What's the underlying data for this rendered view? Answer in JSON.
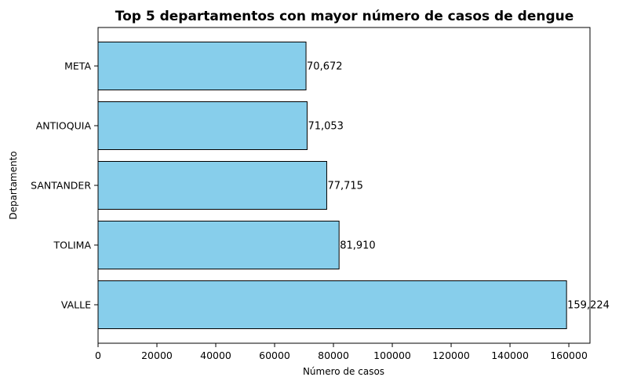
{
  "chart_data": {
    "type": "bar",
    "orientation": "horizontal",
    "title": "Top 5 departamentos con mayor número de casos de dengue",
    "xlabel": "Número de casos",
    "ylabel": "Departamento",
    "categories": [
      "VALLE",
      "TOLIMA",
      "SANTANDER",
      "ANTIOQUIA",
      "META"
    ],
    "values": [
      159224,
      81910,
      77715,
      71053,
      70672
    ],
    "data_labels": [
      "159,224",
      "81,910",
      "77,715",
      "71,053",
      "70,672"
    ],
    "xlim": [
      0,
      167185
    ],
    "xticks": [
      0,
      20000,
      40000,
      60000,
      80000,
      100000,
      120000,
      140000,
      160000
    ],
    "grid": false,
    "legend": "none",
    "colors": {
      "bar_fill": "#87ceeb",
      "bar_edge": "#000000"
    }
  }
}
